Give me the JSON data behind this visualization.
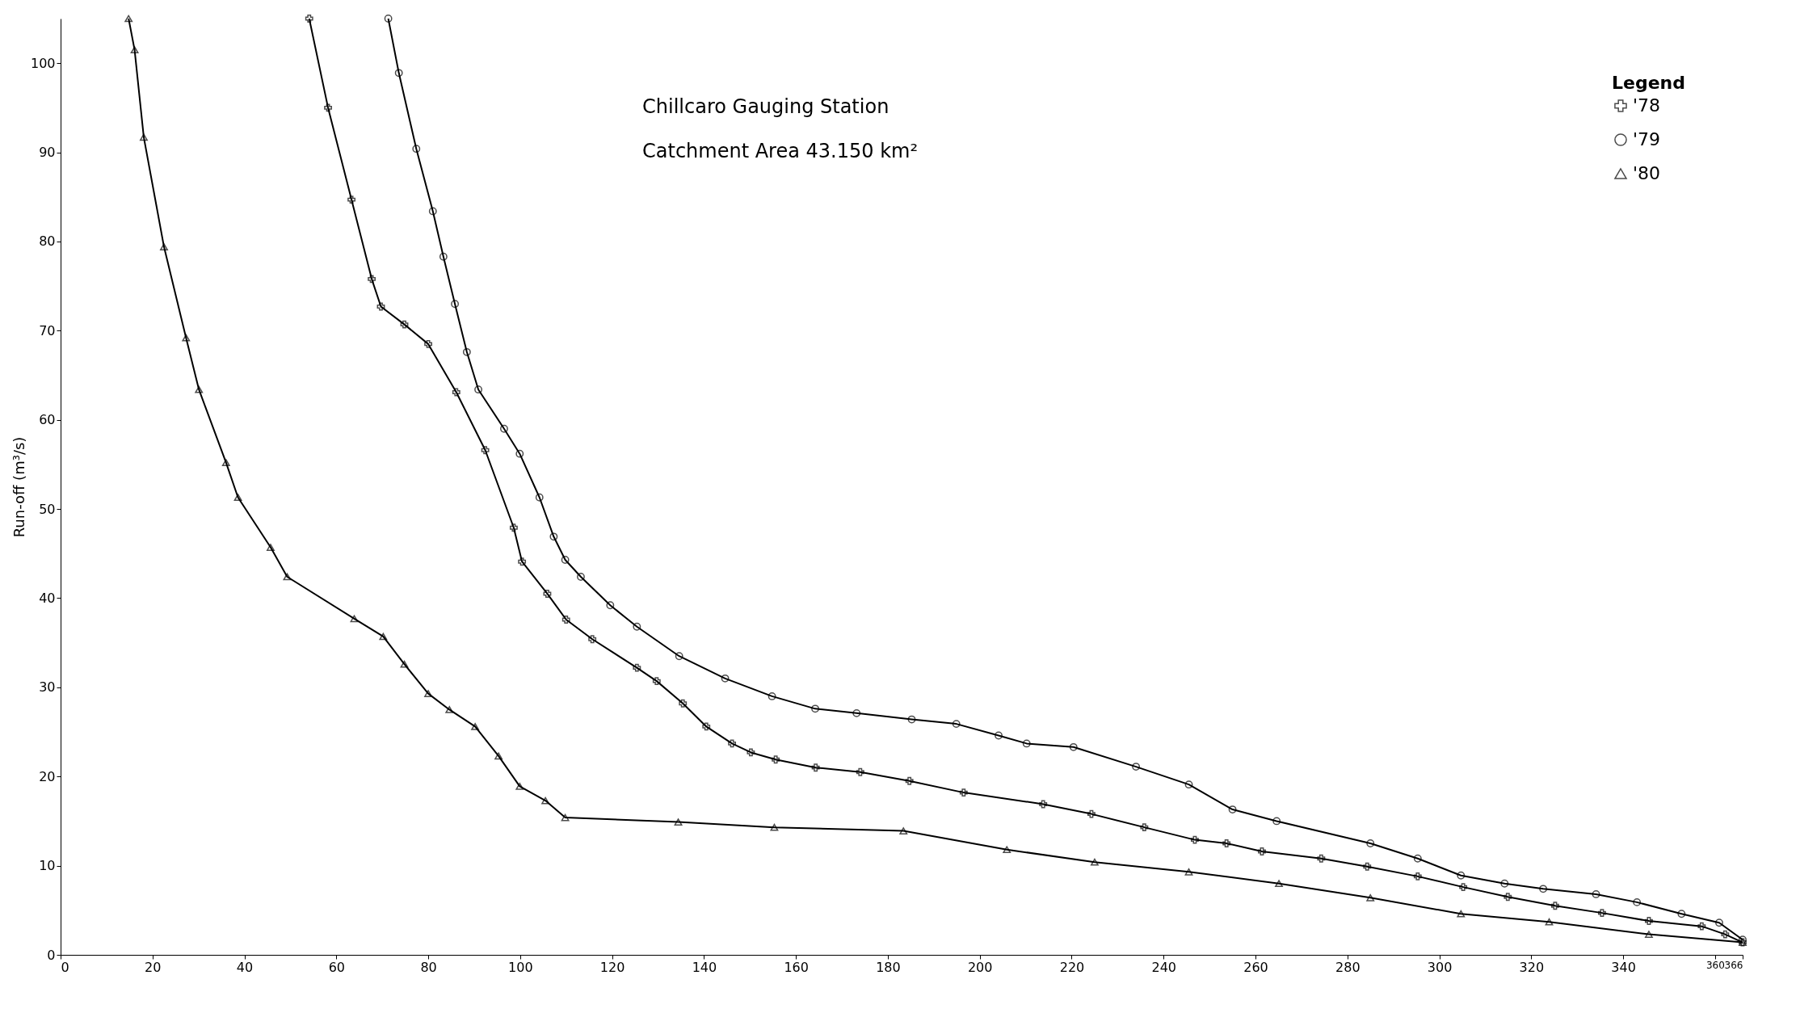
{
  "chart_data": {
    "type": "line",
    "ylabel": "Run-off (m³/s)",
    "legend_title": "Legend",
    "legend": "top right",
    "grid": false,
    "line_style": "solid",
    "annotations": [
      "Chillcaro Gauging Station",
      "Catchment Area   43.150 km²"
    ],
    "xlim": [
      0,
      366
    ],
    "xticks": [
      0,
      20,
      40,
      60,
      80,
      100,
      120,
      140,
      160,
      180,
      200,
      220,
      240,
      260,
      280,
      300,
      320,
      340,
      360,
      366
    ],
    "ylim": [
      0,
      105
    ],
    "yticks": [
      0,
      10,
      20,
      30,
      40,
      50,
      60,
      70,
      80,
      90,
      100
    ],
    "series": [
      {
        "name": "'78",
        "color": "#000000",
        "marker": "cross",
        "x": [
          54.1,
          58.2,
          63.3,
          67.7,
          69.7,
          74.8,
          80,
          86.1,
          92.4,
          98.6,
          100.4,
          105.9,
          110,
          115.7,
          125.4,
          129.7,
          135.4,
          140.5,
          146.1,
          150.2,
          155.6,
          164.3,
          174,
          184.7,
          196.5,
          213.8,
          224.3,
          235.8,
          246.8,
          253.7,
          261.4,
          274.3,
          284.3,
          295.3,
          305.2,
          314.9,
          325.2,
          335.4,
          345.6,
          357.1,
          362.2,
          366
        ],
        "values": [
          105,
          95,
          84.7,
          75.8,
          72.7,
          70.7,
          68.5,
          63.1,
          56.6,
          47.9,
          44.1,
          40.5,
          37.6,
          35.4,
          32.2,
          30.7,
          28.2,
          25.6,
          23.7,
          22.7,
          21.9,
          21,
          20.5,
          19.5,
          18.2,
          16.9,
          15.8,
          14.3,
          12.9,
          12.5,
          11.6,
          10.8,
          9.9,
          8.8,
          7.6,
          6.5,
          5.5,
          4.7,
          3.8,
          3.2,
          2.3,
          1.4
        ]
      },
      {
        "name": "'79",
        "color": "#000000",
        "marker": "circle",
        "x": [
          71.3,
          73.6,
          77.4,
          81,
          83.3,
          85.8,
          88.4,
          90.9,
          96.5,
          99.9,
          104.2,
          107.3,
          109.8,
          113.2,
          119.6,
          125.4,
          134.6,
          144.6,
          154.8,
          164.2,
          173.2,
          185.2,
          194.9,
          204.1,
          210.2,
          220.4,
          234,
          245.5,
          255,
          264.6,
          285,
          295.3,
          304.7,
          314.2,
          322.6,
          334.1,
          343,
          352.7,
          360.9,
          366
        ],
        "values": [
          105,
          98.9,
          90.4,
          83.4,
          78.3,
          73,
          67.6,
          63.4,
          59,
          56.2,
          51.3,
          46.9,
          44.3,
          42.4,
          39.2,
          36.8,
          33.5,
          31,
          29,
          27.6,
          27.1,
          26.4,
          25.9,
          24.6,
          23.7,
          23.3,
          21.1,
          19.1,
          16.3,
          15,
          12.5,
          10.8,
          8.9,
          8,
          7.4,
          6.8,
          5.9,
          4.6,
          3.6,
          1.7
        ]
      },
      {
        "name": "'80",
        "color": "#000000",
        "marker": "triangle",
        "x": [
          14.8,
          16.1,
          18.1,
          22.5,
          27.3,
          30.1,
          36,
          38.6,
          45.7,
          49.3,
          63.9,
          70.2,
          74.8,
          80,
          84.6,
          90.2,
          95.3,
          99.9,
          105.5,
          109.8,
          134.4,
          155.3,
          183.4,
          205.9,
          225,
          245.5,
          265.1,
          285,
          304.7,
          323.9,
          345.6,
          366
        ],
        "values": [
          105,
          101.5,
          91.7,
          79.4,
          69.2,
          63.4,
          55.2,
          51.3,
          45.7,
          42.4,
          37.7,
          35.7,
          32.6,
          29.3,
          27.5,
          25.6,
          22.3,
          18.9,
          17.3,
          15.4,
          14.9,
          14.3,
          13.9,
          11.8,
          10.4,
          9.3,
          8,
          6.4,
          4.6,
          3.7,
          2.3,
          1.4
        ]
      }
    ]
  }
}
